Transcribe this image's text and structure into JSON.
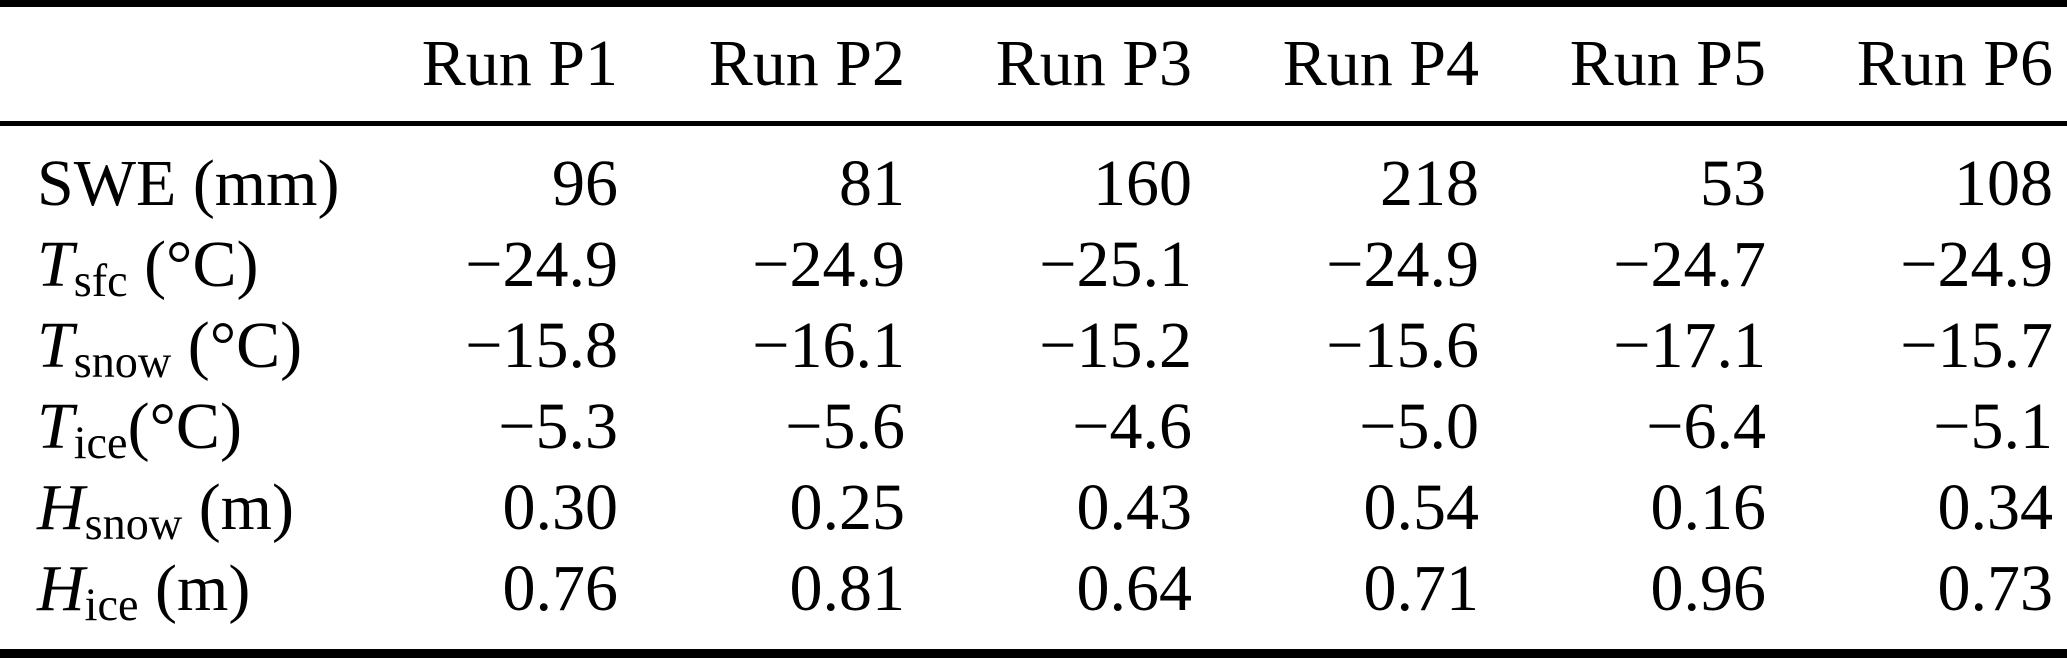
{
  "colors": {
    "background": "#ffffff",
    "text": "#000000",
    "rule": "#000000"
  },
  "table": {
    "corner_label": "",
    "columns": [
      "Run P1",
      "Run P2",
      "Run P3",
      "Run P4",
      "Run P5",
      "Run P6"
    ],
    "rows": [
      {
        "symbol": "SWE",
        "subscript": "",
        "unit": " (mm)",
        "italic": false,
        "values": [
          "96",
          "81",
          "160",
          "218",
          "53",
          "108"
        ]
      },
      {
        "symbol": "T",
        "subscript": "sfc",
        "unit": " (°C)",
        "italic": true,
        "values": [
          "−24.9",
          "−24.9",
          "−25.1",
          "−24.9",
          "−24.7",
          "−24.9"
        ]
      },
      {
        "symbol": "T",
        "subscript": "snow",
        "unit": " (°C)",
        "italic": true,
        "values": [
          "−15.8",
          "−16.1",
          "−15.2",
          "−15.6",
          "−17.1",
          "−15.7"
        ]
      },
      {
        "symbol": "T",
        "subscript": "ice",
        "unit": "(°C)",
        "italic": true,
        "values": [
          "−5.3",
          "−5.6",
          "−4.6",
          "−5.0",
          "−6.4",
          "−5.1"
        ]
      },
      {
        "symbol": "H",
        "subscript": "snow",
        "unit": " (m)",
        "italic": true,
        "values": [
          "0.30",
          "0.25",
          "0.43",
          "0.54",
          "0.16",
          "0.34"
        ]
      },
      {
        "symbol": "H",
        "subscript": "ice",
        "unit": " (m)",
        "italic": true,
        "values": [
          "0.76",
          "0.81",
          "0.64",
          "0.71",
          "0.96",
          "0.73"
        ]
      }
    ]
  }
}
